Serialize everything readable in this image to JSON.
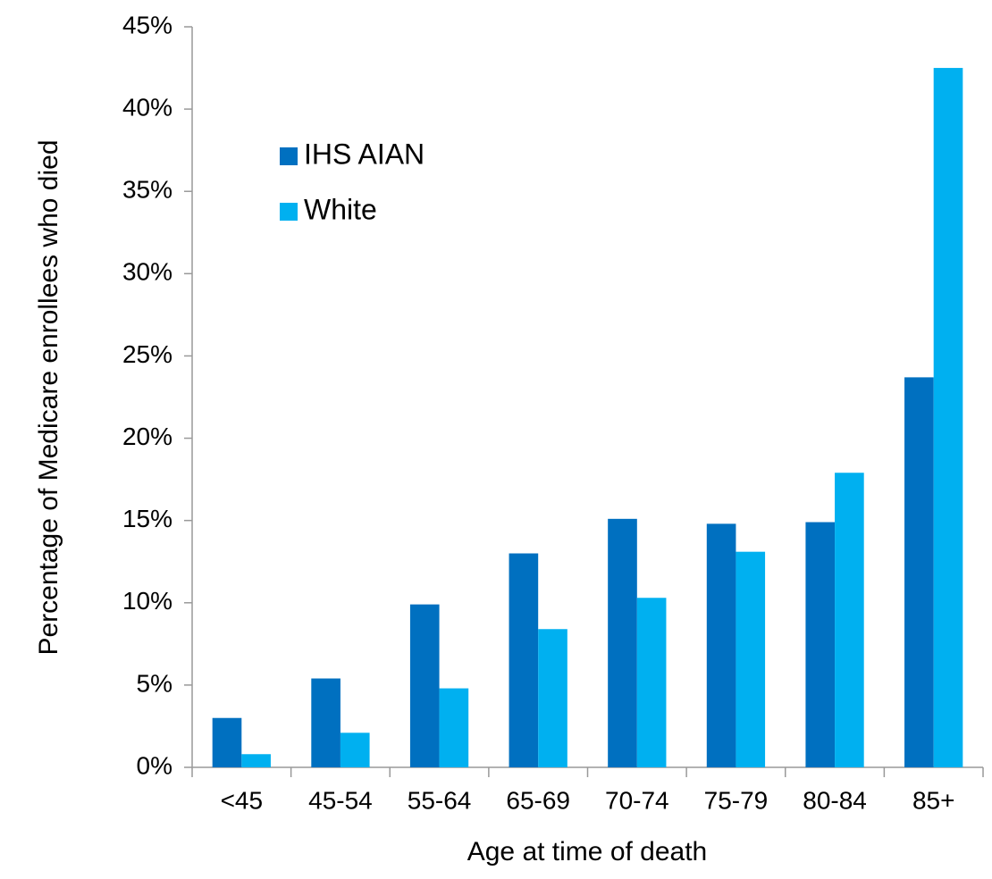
{
  "chart_data": {
    "type": "bar",
    "x_label": "Age at time of death",
    "y_label": "Percentage of Medicare enrollees who died",
    "categories": [
      "<45",
      "45-54",
      "55-64",
      "65-69",
      "70-74",
      "75-79",
      "80-84",
      "85+"
    ],
    "series": [
      {
        "name": "IHS AIAN",
        "color": "#0070c0",
        "values": [
          3.0,
          5.4,
          9.9,
          13.0,
          15.1,
          14.8,
          14.9,
          23.7
        ]
      },
      {
        "name": "White",
        "color": "#00b0f0",
        "values": [
          0.8,
          2.1,
          4.8,
          8.4,
          10.3,
          13.1,
          17.9,
          42.5
        ]
      }
    ],
    "ylim": [
      0,
      45
    ],
    "yticks": [
      {
        "value": 0,
        "label": "0%"
      },
      {
        "value": 5,
        "label": "5%"
      },
      {
        "value": 10,
        "label": "10%"
      },
      {
        "value": 15,
        "label": "15%"
      },
      {
        "value": 20,
        "label": "20%"
      },
      {
        "value": 25,
        "label": "25%"
      },
      {
        "value": 30,
        "label": "30%"
      },
      {
        "value": 35,
        "label": "35%"
      },
      {
        "value": 40,
        "label": "40%"
      },
      {
        "value": 45,
        "label": "45%"
      }
    ],
    "legend": "upper left",
    "grid": false
  }
}
